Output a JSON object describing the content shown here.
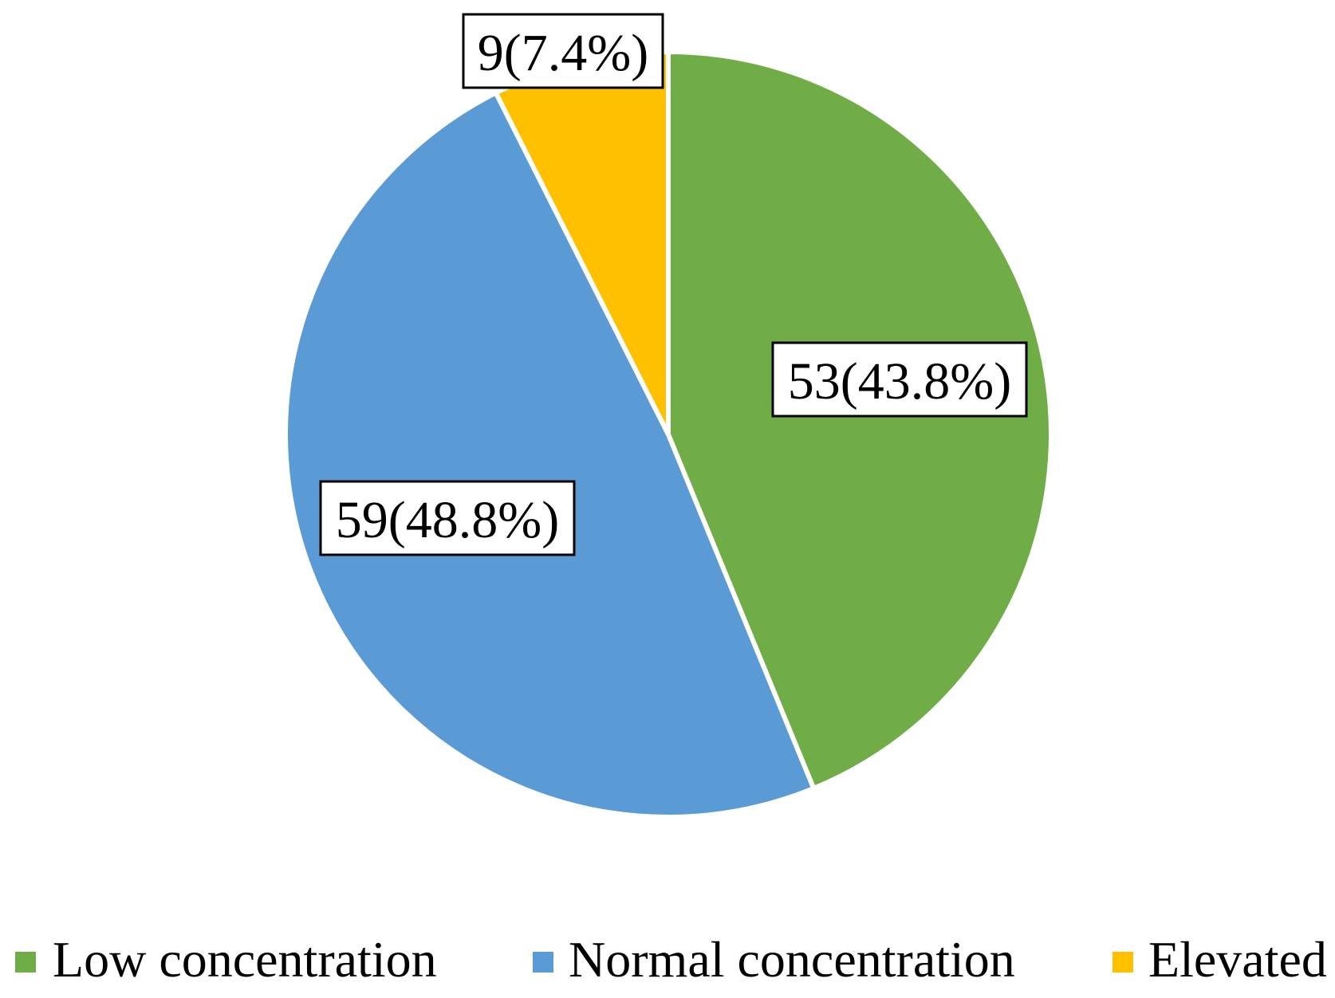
{
  "chart_data": {
    "type": "pie",
    "title": "",
    "slices": [
      {
        "label": "Low concentration",
        "value": 53,
        "percent": "43.8%",
        "data_label": "53(43.8%)",
        "color": "#70AD47"
      },
      {
        "label": "Normal concentration",
        "value": 59,
        "percent": "48.8%",
        "data_label": "59(48.8%)",
        "color": "#5B9BD5"
      },
      {
        "label": "Elevated",
        "value": 9,
        "percent": "7.4%",
        "data_label": "9(7.4%)",
        "color": "#FFC000"
      }
    ],
    "start_angle": "12 o'clock",
    "direction": "clockwise",
    "legend": {
      "position": "bottom"
    }
  }
}
